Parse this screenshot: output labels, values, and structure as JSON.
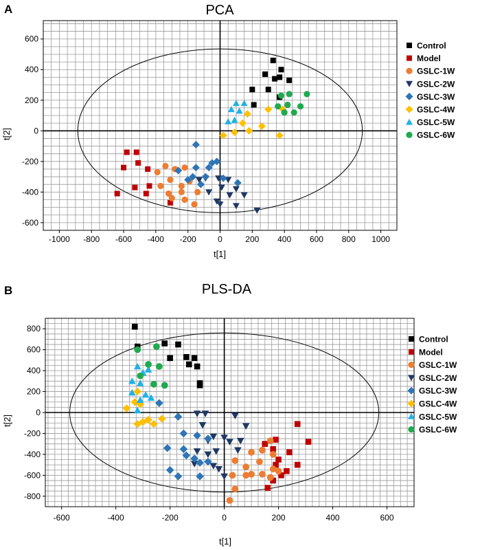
{
  "colors": {
    "Control": "#000000",
    "Model": "#c00000",
    "GSLC-1W": "#ed7d31",
    "GSLC-2W": "#1f3864",
    "GSLC-3W": "#2e75b6",
    "GSLC-4W": "#ffc000",
    "GSLC-5W": "#1fb2e8",
    "GSLC-6W": "#1faa4f"
  },
  "shapes": {
    "Control": "square",
    "Model": "square",
    "GSLC-1W": "circle",
    "GSLC-2W": "triangle-down",
    "GSLC-3W": "diamond",
    "GSLC-4W": "diamond",
    "GSLC-5W": "triangle-up",
    "GSLC-6W": "circle"
  },
  "chart_data": [
    {
      "panel_label": "A",
      "type": "scatter",
      "title": "PCA",
      "xlabel": "t[1]",
      "ylabel": "t[2]",
      "xlim": [
        -1100,
        1100
      ],
      "ylim": [
        -650,
        720
      ],
      "xticks": [
        -1000,
        -800,
        -600,
        -400,
        -200,
        0,
        200,
        400,
        600,
        800,
        1000
      ],
      "yticks": [
        -600,
        -400,
        -200,
        0,
        200,
        400,
        600
      ],
      "xgrid_step": 50,
      "ygrid_step": 50,
      "grid": true,
      "ellipse": {
        "cx": 0,
        "cy": 0,
        "rx": 885,
        "ry": 535
      },
      "legend_position": "right",
      "legend": [
        "Control",
        "Model",
        "GSLC-1W",
        "GSLC-2W",
        "GSLC-3W",
        "GSLC-4W",
        "GSLC-5W",
        "GSLC-6W"
      ],
      "series": [
        {
          "name": "Control",
          "points": [
            [
              330,
              460
            ],
            [
              380,
              400
            ],
            [
              280,
              370
            ],
            [
              340,
              340
            ],
            [
              370,
              350
            ],
            [
              430,
              330
            ],
            [
              200,
              270
            ],
            [
              300,
              270
            ],
            [
              370,
              220
            ],
            [
              210,
              170
            ]
          ]
        },
        {
          "name": "Model",
          "points": [
            [
              -580,
              -140
            ],
            [
              -520,
              -140
            ],
            [
              -600,
              -240
            ],
            [
              -510,
              -210
            ],
            [
              -450,
              -250
            ],
            [
              -530,
              -370
            ],
            [
              -440,
              -360
            ],
            [
              -640,
              -410
            ],
            [
              -460,
              -410
            ],
            [
              -310,
              -470
            ]
          ]
        },
        {
          "name": "GSLC-1W",
          "points": [
            [
              -340,
              -230
            ],
            [
              -280,
              -250
            ],
            [
              -220,
              -240
            ],
            [
              -390,
              -270
            ],
            [
              -310,
              -320
            ],
            [
              -370,
              -360
            ],
            [
              -240,
              -360
            ],
            [
              -190,
              -330
            ],
            [
              -320,
              -410
            ],
            [
              -240,
              -400
            ],
            [
              -140,
              -400
            ],
            [
              -220,
              -450
            ],
            [
              -300,
              -440
            ],
            [
              -160,
              -480
            ]
          ]
        },
        {
          "name": "GSLC-2W",
          "points": [
            [
              -90,
              -310
            ],
            [
              -10,
              -310
            ],
            [
              -130,
              -320
            ],
            [
              50,
              -320
            ],
            [
              10,
              -370
            ],
            [
              100,
              -380
            ],
            [
              -70,
              -400
            ],
            [
              60,
              -420
            ],
            [
              150,
              -420
            ],
            [
              -20,
              -460
            ],
            [
              0,
              -480
            ],
            [
              100,
              -490
            ],
            [
              230,
              -520
            ]
          ]
        },
        {
          "name": "GSLC-3W",
          "points": [
            [
              -150,
              -90
            ],
            [
              -20,
              -200
            ],
            [
              -50,
              -210
            ],
            [
              -150,
              -240
            ],
            [
              -70,
              -240
            ],
            [
              -260,
              -260
            ],
            [
              -170,
              -300
            ],
            [
              -90,
              -300
            ],
            [
              -200,
              -320
            ],
            [
              20,
              -310
            ],
            [
              110,
              -340
            ],
            [
              -120,
              -350
            ]
          ]
        },
        {
          "name": "GSLC-4W",
          "points": [
            [
              300,
              140
            ],
            [
              390,
              140
            ],
            [
              170,
              110
            ],
            [
              140,
              50
            ],
            [
              260,
              30
            ],
            [
              180,
              0
            ],
            [
              90,
              -10
            ],
            [
              20,
              -30
            ],
            [
              370,
              -30
            ]
          ]
        },
        {
          "name": "GSLC-5W",
          "points": [
            [
              100,
              180
            ],
            [
              150,
              180
            ],
            [
              70,
              140
            ],
            [
              120,
              130
            ],
            [
              50,
              60
            ],
            [
              90,
              70
            ]
          ]
        },
        {
          "name": "GSLC-6W",
          "points": [
            [
              430,
              240
            ],
            [
              540,
              240
            ],
            [
              380,
              230
            ],
            [
              360,
              160
            ],
            [
              420,
              170
            ],
            [
              500,
              160
            ],
            [
              400,
              120
            ],
            [
              460,
              120
            ]
          ]
        }
      ]
    },
    {
      "panel_label": "B",
      "type": "scatter",
      "title": "PLS-DA",
      "xlabel": "t[1]",
      "ylabel": "t[2]",
      "xlim": [
        -660,
        700
      ],
      "ylim": [
        -900,
        900
      ],
      "xticks": [
        -600,
        -400,
        -200,
        0,
        200,
        400,
        600
      ],
      "yticks": [
        -800,
        -600,
        -400,
        -200,
        0,
        200,
        400,
        600,
        800
      ],
      "xgrid_step": 25,
      "ygrid_step": 50,
      "grid": true,
      "ellipse": {
        "cx": 0,
        "cy": 0,
        "rx": 570,
        "ry": 760
      },
      "legend_position": "right",
      "legend": [
        "Control",
        "Model",
        "GSLC-1W",
        "GSLC-2W",
        "GSLC-3W",
        "GSLC-4W",
        "GSLC-5W",
        "GSLC-6W"
      ],
      "series": [
        {
          "name": "Control",
          "points": [
            [
              -330,
              820
            ],
            [
              -220,
              660
            ],
            [
              -170,
              650
            ],
            [
              -320,
              630
            ],
            [
              -200,
              520
            ],
            [
              -140,
              530
            ],
            [
              -110,
              520
            ],
            [
              -130,
              460
            ],
            [
              -100,
              440
            ],
            [
              -90,
              280
            ],
            [
              -90,
              260
            ]
          ]
        },
        {
          "name": "Model",
          "points": [
            [
              270,
              -110
            ],
            [
              310,
              -280
            ],
            [
              190,
              -260
            ],
            [
              150,
              -300
            ],
            [
              180,
              -350
            ],
            [
              240,
              -380
            ],
            [
              200,
              -450
            ],
            [
              190,
              -500
            ],
            [
              270,
              -500
            ],
            [
              210,
              -600
            ],
            [
              230,
              -560
            ],
            [
              180,
              -650
            ],
            [
              160,
              -720
            ]
          ]
        },
        {
          "name": "GSLC-1W",
          "points": [
            [
              170,
              -270
            ],
            [
              140,
              -360
            ],
            [
              180,
              -400
            ],
            [
              100,
              -380
            ],
            [
              40,
              -460
            ],
            [
              130,
              -470
            ],
            [
              80,
              -520
            ],
            [
              180,
              -540
            ],
            [
              200,
              -560
            ],
            [
              140,
              -590
            ],
            [
              100,
              -590
            ],
            [
              30,
              -600
            ],
            [
              80,
              -600
            ],
            [
              170,
              -620
            ],
            [
              40,
              -730
            ],
            [
              20,
              -840
            ]
          ]
        },
        {
          "name": "GSLC-2W",
          "points": [
            [
              -100,
              -10
            ],
            [
              -70,
              -10
            ],
            [
              40,
              -30
            ],
            [
              80,
              -130
            ],
            [
              -80,
              -120
            ],
            [
              -40,
              -230
            ],
            [
              0,
              -240
            ],
            [
              -60,
              -270
            ],
            [
              20,
              -280
            ],
            [
              60,
              -270
            ],
            [
              -100,
              -370
            ],
            [
              -30,
              -370
            ],
            [
              -60,
              -400
            ],
            [
              50,
              -360
            ],
            [
              -110,
              -490
            ],
            [
              -40,
              -510
            ],
            [
              -20,
              -540
            ],
            [
              0,
              -610
            ]
          ]
        },
        {
          "name": "GSLC-3W",
          "points": [
            [
              -240,
              90
            ],
            [
              -170,
              -40
            ],
            [
              -150,
              -200
            ],
            [
              -100,
              -220
            ],
            [
              -210,
              -340
            ],
            [
              -150,
              -350
            ],
            [
              -60,
              -250
            ],
            [
              -140,
              -410
            ],
            [
              -110,
              -440
            ],
            [
              -60,
              -470
            ],
            [
              -200,
              -550
            ],
            [
              -170,
              -610
            ],
            [
              -90,
              -610
            ],
            [
              -90,
              -480
            ]
          ]
        },
        {
          "name": "GSLC-4W",
          "points": [
            [
              -320,
              200
            ],
            [
              -330,
              100
            ],
            [
              -310,
              80
            ],
            [
              -360,
              40
            ],
            [
              -280,
              -70
            ],
            [
              -230,
              -60
            ],
            [
              -320,
              -110
            ],
            [
              -300,
              -90
            ],
            [
              -260,
              -110
            ]
          ]
        },
        {
          "name": "GSLC-5W",
          "points": [
            [
              -320,
              440
            ],
            [
              -280,
              410
            ],
            [
              -300,
              380
            ],
            [
              -340,
              300
            ],
            [
              -310,
              280
            ],
            [
              -290,
              170
            ],
            [
              -340,
              190
            ],
            [
              -310,
              120
            ],
            [
              -270,
              140
            ],
            [
              -320,
              20
            ]
          ]
        },
        {
          "name": "GSLC-6W",
          "points": [
            [
              -320,
              600
            ],
            [
              -250,
              630
            ],
            [
              -280,
              460
            ],
            [
              -240,
              440
            ],
            [
              -310,
              350
            ],
            [
              -260,
              270
            ],
            [
              -220,
              260
            ]
          ]
        }
      ]
    }
  ]
}
